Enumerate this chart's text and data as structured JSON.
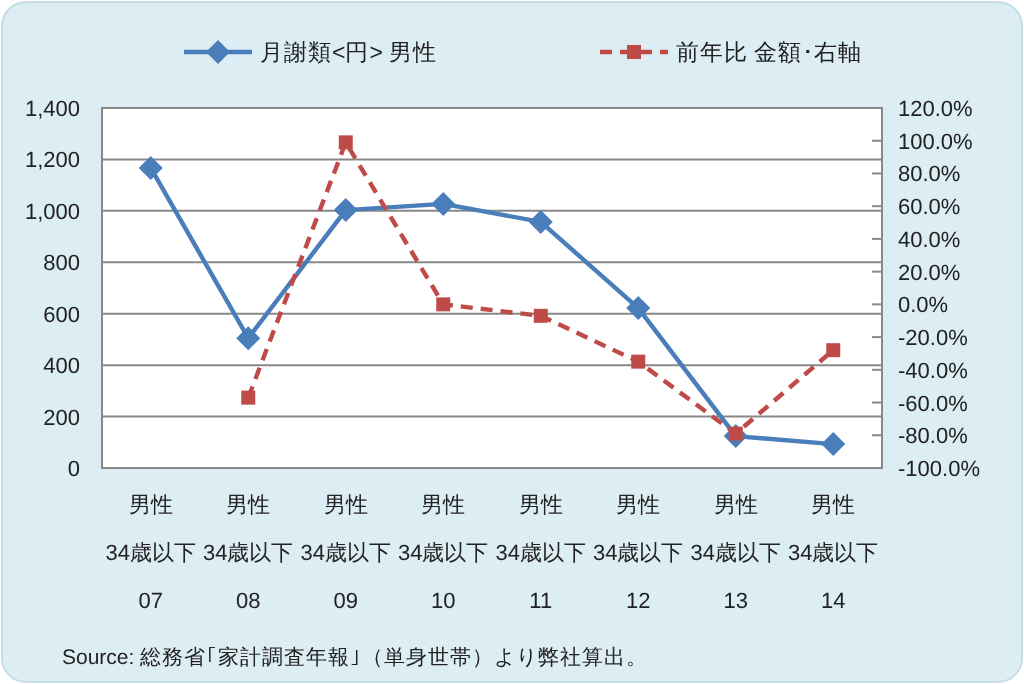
{
  "chart_data": {
    "type": "line",
    "categories": [
      "男性\n34歳以下\n07",
      "男性\n34歳以下\n08",
      "男性\n34歳以下\n09",
      "男性\n34歳以下\n10",
      "男性\n34歳以下\n11",
      "男性\n34歳以下\n12",
      "男性\n34歳以下\n13",
      "男性\n34歳以下\n14"
    ],
    "series": [
      {
        "name": "月謝類<円> 男性",
        "color": "#4a7ebb",
        "marker": "diamond",
        "line_style": "solid",
        "values": [
          1167,
          505,
          1003,
          1027,
          957,
          622,
          124,
          93
        ]
      },
      {
        "name": "前年比 金額･右軸",
        "color": "#be4b48",
        "marker": "square",
        "line_style": "dashed",
        "axis": "y2",
        "values": [
          null,
          -57,
          99,
          0,
          -7,
          -35,
          -79,
          -28
        ]
      }
    ],
    "ylim": [
      0,
      1400
    ],
    "yticks": [
      0,
      200,
      400,
      600,
      800,
      {
        "value": 1000,
        "label": "1,000"
      },
      {
        "value": 1200,
        "label": "1,200"
      },
      {
        "value": 1400,
        "label": "1,400"
      }
    ],
    "y2lim": [
      -100,
      120
    ],
    "y2ticks": [
      {
        "value": -100,
        "label": "-100.0%"
      },
      {
        "value": -80,
        "label": "-80.0%"
      },
      {
        "value": -60,
        "label": "-60.0%"
      },
      {
        "value": -40,
        "label": "-40.0%"
      },
      {
        "value": -20,
        "label": "-20.0%"
      },
      {
        "value": 0,
        "label": "0.0%"
      },
      {
        "value": 20,
        "label": "20.0%"
      },
      {
        "value": 40,
        "label": "40.0%"
      },
      {
        "value": 60,
        "label": "60.0%"
      },
      {
        "value": 80,
        "label": "80.0%"
      },
      {
        "value": 100,
        "label": "100.0%"
      },
      {
        "value": 120,
        "label": "120.0%"
      }
    ],
    "grid": "y",
    "legend": "top",
    "annotations": [
      "Source: 総務省｢家計調査年報｣（単身世帯）より弊社算出。"
    ]
  }
}
